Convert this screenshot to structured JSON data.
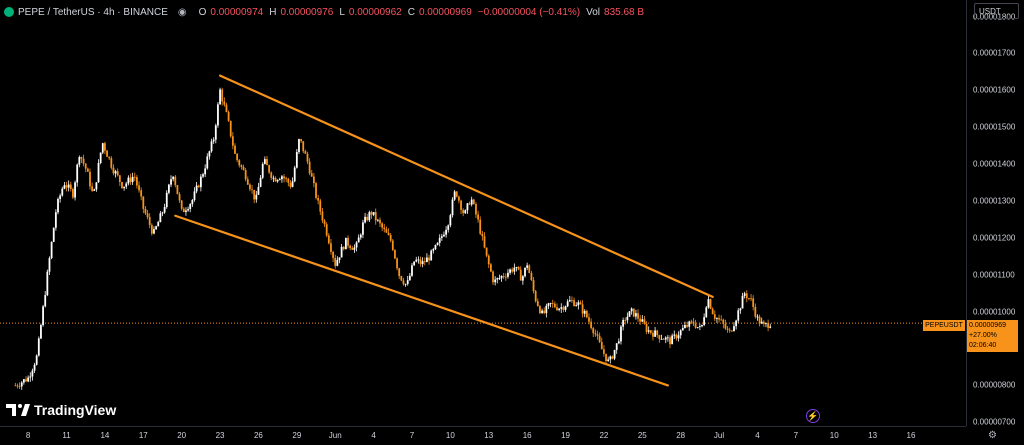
{
  "header": {
    "symbol_line": "PEPE / TetherUS · 4h · BINANCE",
    "open_label": "O",
    "open_value": "0.00000974",
    "high_label": "H",
    "high_value": "0.00000976",
    "low_label": "L",
    "low_value": "0.00000962",
    "close_label": "C",
    "close_value": "0.00000969",
    "change_value": "−0.00000004 (−0.41%)",
    "volume_label": "Vol",
    "volume_value": "835.68 B"
  },
  "currency_selector": "USDT",
  "branding": "TradingView",
  "last_price_tag": {
    "symbol": "PEPEUSDT",
    "price": "0.00000969",
    "change": "+27.00%",
    "countdown": "02:06:40"
  },
  "colors": {
    "background": "#000000",
    "up": "#ffffff",
    "down": "#f7931a",
    "trendline": "#f7931a",
    "text": "#d1d4dc",
    "header_negative": "#f7525f"
  },
  "chart_data": {
    "type": "candlestick",
    "title": "PEPE / TetherUS · 4h · BINANCE",
    "ylim": [
      6.9e-06,
      1.845e-05
    ],
    "y_ticks": [
      "0.00001800",
      "0.00001700",
      "0.00001600",
      "0.00001500",
      "0.00001400",
      "0.00001300",
      "0.00001200",
      "0.00001100",
      "0.00001000",
      "0.00000900",
      "0.00000800",
      "0.00000700"
    ],
    "x_ticks": [
      "8",
      "11",
      "14",
      "17",
      "20",
      "23",
      "26",
      "29",
      "Jun",
      "4",
      "7",
      "10",
      "13",
      "16",
      "19",
      "22",
      "25",
      "28",
      "Jul",
      "4",
      "7",
      "10",
      "13",
      "16"
    ],
    "x_tick_days": [
      8,
      11,
      14,
      17,
      20,
      23,
      26,
      29,
      32,
      35,
      38,
      41,
      44,
      47,
      50,
      53,
      56,
      59,
      62,
      65,
      68,
      71,
      74,
      77
    ],
    "price_path": [
      [
        7.0,
        8e-06
      ],
      [
        8.0,
        8.2e-06
      ],
      [
        8.7,
        8.8e-06
      ],
      [
        9.5,
        1.1e-05
      ],
      [
        10.2,
        1.28e-05
      ],
      [
        10.8,
        1.35e-05
      ],
      [
        11.5,
        1.32e-05
      ],
      [
        12.0,
        1.43e-05
      ],
      [
        12.6,
        1.38e-05
      ],
      [
        13.1,
        1.31e-05
      ],
      [
        13.8,
        1.46e-05
      ],
      [
        14.6,
        1.39e-05
      ],
      [
        15.4,
        1.34e-05
      ],
      [
        16.3,
        1.37e-05
      ],
      [
        17.0,
        1.28e-05
      ],
      [
        17.8,
        1.21e-05
      ],
      [
        18.6,
        1.28e-05
      ],
      [
        19.3,
        1.38e-05
      ],
      [
        20.0,
        1.27e-05
      ],
      [
        20.8,
        1.3e-05
      ],
      [
        21.6,
        1.37e-05
      ],
      [
        22.5,
        1.47e-05
      ],
      [
        23.0,
        1.6e-05
      ],
      [
        23.6,
        1.52e-05
      ],
      [
        24.2,
        1.42e-05
      ],
      [
        25.0,
        1.37e-05
      ],
      [
        25.8,
        1.3e-05
      ],
      [
        26.4,
        1.41e-05
      ],
      [
        27.2,
        1.36e-05
      ],
      [
        27.8,
        1.37e-05
      ],
      [
        28.6,
        1.34e-05
      ],
      [
        29.2,
        1.47e-05
      ],
      [
        29.9,
        1.4e-05
      ],
      [
        30.6,
        1.3e-05
      ],
      [
        31.3,
        1.22e-05
      ],
      [
        32.0,
        1.13e-05
      ],
      [
        32.8,
        1.19e-05
      ],
      [
        33.6,
        1.17e-05
      ],
      [
        34.2,
        1.24e-05
      ],
      [
        34.8,
        1.27e-05
      ],
      [
        35.6,
        1.23e-05
      ],
      [
        36.4,
        1.19e-05
      ],
      [
        37.0,
        1.1e-05
      ],
      [
        37.6,
        1.07e-05
      ],
      [
        38.2,
        1.14e-05
      ],
      [
        38.8,
        1.13e-05
      ],
      [
        39.4,
        1.15e-05
      ],
      [
        40.0,
        1.18e-05
      ],
      [
        40.8,
        1.24e-05
      ],
      [
        41.4,
        1.33e-05
      ],
      [
        42.1,
        1.26e-05
      ],
      [
        42.6,
        1.31e-05
      ],
      [
        43.2,
        1.24e-05
      ],
      [
        43.8,
        1.15e-05
      ],
      [
        44.4,
        1.08e-05
      ],
      [
        45.2,
        1.1e-05
      ],
      [
        46.0,
        1.12e-05
      ],
      [
        46.6,
        1.09e-05
      ],
      [
        47.0,
        1.13e-05
      ],
      [
        47.6,
        1.04e-05
      ],
      [
        48.2,
        9.9e-06
      ],
      [
        48.8,
        1.02e-05
      ],
      [
        49.6,
        1.01e-05
      ],
      [
        50.4,
        1.03e-05
      ],
      [
        51.0,
        1.02e-05
      ],
      [
        51.6,
        9.9e-06
      ],
      [
        52.2,
        9.5e-06
      ],
      [
        52.8,
        9e-06
      ],
      [
        53.4,
        8.6e-06
      ],
      [
        54.0,
        9.1e-06
      ],
      [
        54.6,
        9.8e-06
      ],
      [
        55.2,
        1e-05
      ],
      [
        55.8,
        9.8e-06
      ],
      [
        56.4,
        9.5e-06
      ],
      [
        57.0,
        9.4e-06
      ],
      [
        57.6,
        9.3e-06
      ],
      [
        58.2,
        9.2e-06
      ],
      [
        58.8,
        9.4e-06
      ],
      [
        59.4,
        9.6e-06
      ],
      [
        60.0,
        9.7e-06
      ],
      [
        60.6,
        9.5e-06
      ],
      [
        61.1,
        1.04e-05
      ],
      [
        61.6,
        9.9e-06
      ],
      [
        62.2,
        9.7e-06
      ],
      [
        62.8,
        9.4e-06
      ],
      [
        63.4,
        9.9e-06
      ],
      [
        64.0,
        1.05e-05
      ],
      [
        64.5,
        1.03e-05
      ],
      [
        65.0,
        9.8e-06
      ],
      [
        65.5,
        9.6e-06
      ],
      [
        66.0,
        9.7e-06
      ]
    ],
    "annotations": [
      {
        "type": "trendline",
        "name": "upper channel line",
        "from": [
          23.0,
          1.64e-05
        ],
        "to": [
          61.5,
          1.04e-05
        ]
      },
      {
        "type": "trendline",
        "name": "lower channel line",
        "from": [
          19.5,
          1.26e-05
        ],
        "to": [
          58.0,
          8e-06
        ]
      }
    ],
    "last_price": 9.69e-06,
    "grid": false
  }
}
